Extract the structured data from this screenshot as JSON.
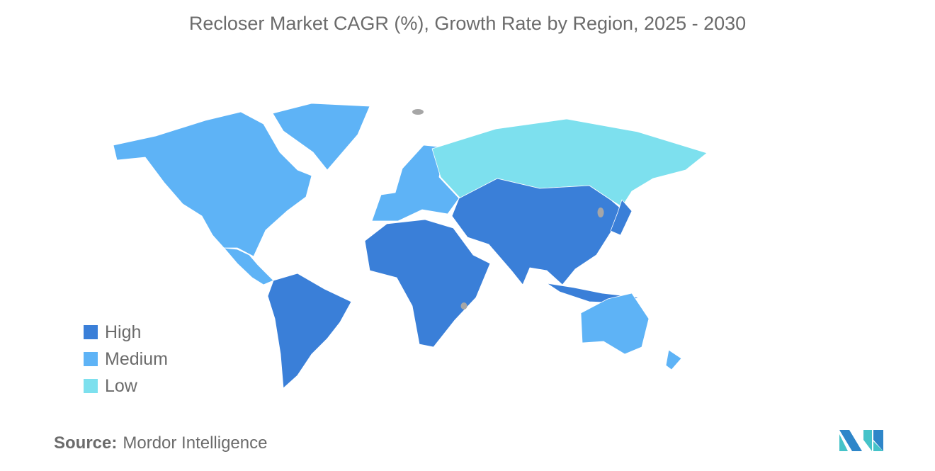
{
  "title": "Recloser Market CAGR (%), Growth Rate by Region, 2025 - 2030",
  "chart_data": {
    "type": "choropleth",
    "title": "Recloser Market CAGR (%), Growth Rate by Region, 2025 - 2030",
    "legend": [
      {
        "label": "High",
        "color": "#3a7fd8"
      },
      {
        "label": "Medium",
        "color": "#5eb3f6"
      },
      {
        "label": "Low",
        "color": "#7de0ee"
      }
    ],
    "no_data_color": "#a6a6a6",
    "legend_placement": "bottom-left",
    "regions": {
      "north-america": "Medium",
      "greenland": "Medium",
      "central-america": "Medium",
      "south-america": "High",
      "europe": "Medium",
      "russia": "Low",
      "asia": "High",
      "japan": "High",
      "southeast-asia": "High",
      "africa": "High",
      "australia": "Medium",
      "new-zealand": "Medium"
    }
  },
  "source": {
    "label": "Source:",
    "value": "Mordor Intelligence"
  }
}
